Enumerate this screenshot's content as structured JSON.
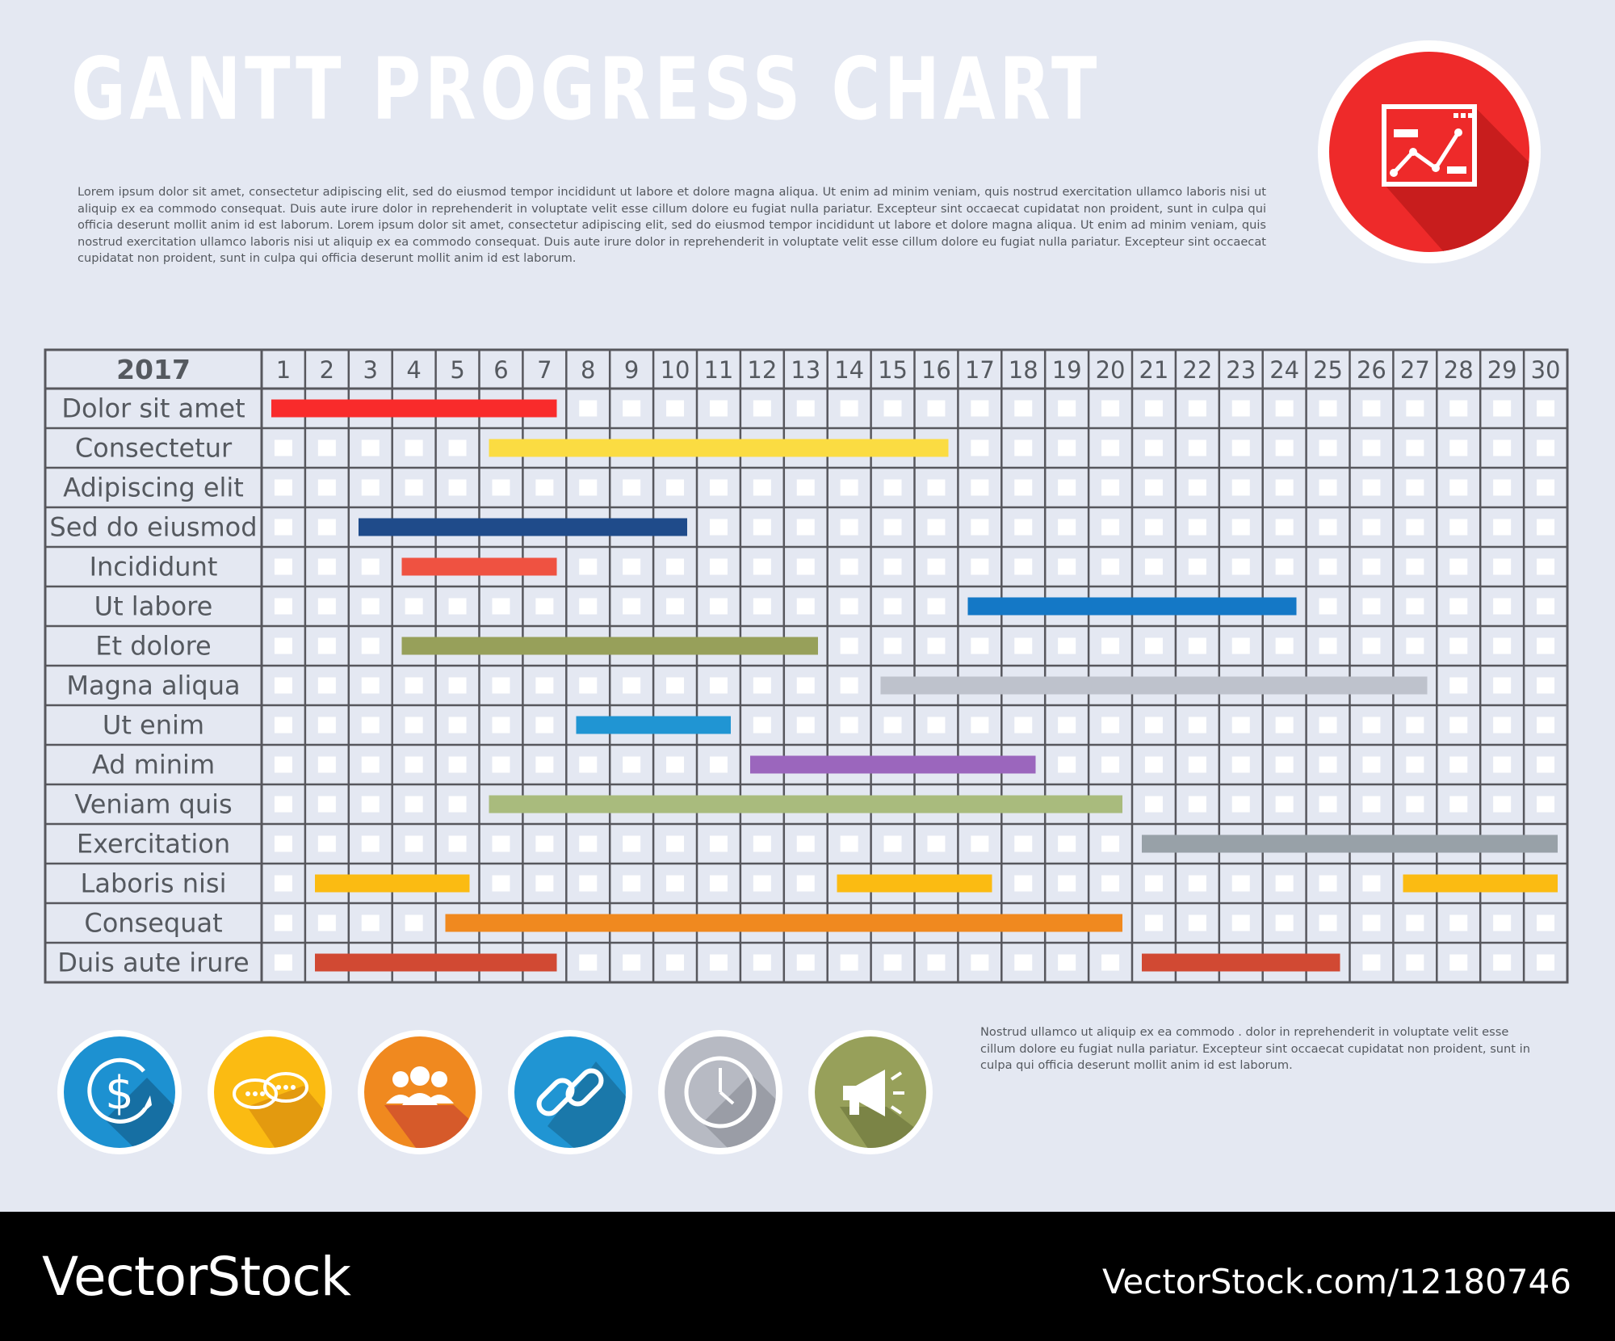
{
  "header": {
    "title": "GANTT PROGRESS CHART",
    "intro_text": "Lorem ipsum dolor sit amet, consectetur adipiscing elit, sed do eiusmod tempor incididunt ut labore et dolore magna aliqua. Ut enim ad minim veniam, quis nostrud exercitation ullamco laboris nisi ut aliquip ex ea commodo consequat. Duis aute irure dolor in reprehenderit in voluptate velit esse cillum dolore eu fugiat nulla pariatur. Excepteur sint occaecat cupidatat non proident, sunt in culpa qui officia deserunt mollit anim id est laborum. Lorem ipsum dolor sit amet, consectetur adipiscing elit, sed do eiusmod tempor incididunt ut labore et dolore magna aliqua. Ut enim ad minim veniam, quis nostrud exercitation ullamco laboris nisi ut aliquip ex ea commodo consequat. Duis aute irure dolor in reprehenderit in voluptate velit esse cillum dolore eu fugiat nulla pariatur. Excepteur sint occaecat cupidatat non proident, sunt in culpa qui officia deserunt mollit anim id est laborum.",
    "hero_icon": "line-chart-window-icon",
    "hero_color": "#ee2a2a"
  },
  "chart_data": {
    "type": "gantt",
    "year_label": "2017",
    "days": [
      1,
      2,
      3,
      4,
      5,
      6,
      7,
      8,
      9,
      10,
      11,
      12,
      13,
      14,
      15,
      16,
      17,
      18,
      19,
      20,
      21,
      22,
      23,
      24,
      25,
      26,
      27,
      28,
      29,
      30
    ],
    "tasks": [
      {
        "name": "Dolor sit amet",
        "color": "#f92b2b",
        "bars": [
          [
            1,
            7
          ]
        ]
      },
      {
        "name": "Consectetur",
        "color": "#fbdc42",
        "bars": [
          [
            6,
            16
          ]
        ]
      },
      {
        "name": "Adipiscing elit",
        "color": "",
        "bars": []
      },
      {
        "name": "Sed do eiusmod",
        "color": "#1f4b8a",
        "bars": [
          [
            3,
            10
          ]
        ]
      },
      {
        "name": "Incididunt",
        "color": "#ef5241",
        "bars": [
          [
            4,
            7
          ]
        ]
      },
      {
        "name": "Ut labore",
        "color": "#1478c6",
        "bars": [
          [
            17,
            24
          ]
        ]
      },
      {
        "name": "Et dolore",
        "color": "#97a05a",
        "bars": [
          [
            4,
            13
          ]
        ]
      },
      {
        "name": "Magna aliqua",
        "color": "#bec2cc",
        "bars": [
          [
            15,
            27
          ]
        ]
      },
      {
        "name": "Ut enim",
        "color": "#2095d3",
        "bars": [
          [
            8,
            11
          ]
        ]
      },
      {
        "name": "Ad minim",
        "color": "#9b66bd",
        "bars": [
          [
            12,
            18
          ]
        ]
      },
      {
        "name": "Veniam quis",
        "color": "#a9bb7d",
        "bars": [
          [
            6,
            20
          ]
        ]
      },
      {
        "name": "Exercitation",
        "color": "#98a1a8",
        "bars": [
          [
            21,
            30
          ]
        ]
      },
      {
        "name": "Laboris nisi",
        "color": "#fbbb12",
        "bars": [
          [
            2,
            5
          ],
          [
            14,
            17
          ],
          [
            27,
            30
          ]
        ]
      },
      {
        "name": "Consequat",
        "color": "#f0891f",
        "bars": [
          [
            5,
            20
          ]
        ]
      },
      {
        "name": "Duis aute irure",
        "color": "#d14933",
        "bars": [
          [
            2,
            7
          ],
          [
            21,
            25
          ]
        ]
      }
    ]
  },
  "icons": [
    {
      "name": "dollar-growth-icon",
      "color": "#1d91d1"
    },
    {
      "name": "speech-bubbles-icon",
      "color": "#fbbb12"
    },
    {
      "name": "team-people-icon",
      "color": "#f0891f"
    },
    {
      "name": "chain-link-icon",
      "color": "#2095d3"
    },
    {
      "name": "clock-icon",
      "color": "#b7bac3"
    },
    {
      "name": "megaphone-icon",
      "color": "#97a05a"
    }
  ],
  "footnote": "Nostrud  ullamco ut aliquip ex ea commodo .  dolor in reprehenderit in voluptate velit esse cillum dolore eu fugiat nulla pariatur. Excepteur sint occaecat cupidatat non proident, sunt in culpa qui officia deserunt mollit anim id est laborum.",
  "footer": {
    "brand": "VectorStock",
    "url": "VectorStock.com/12180746"
  }
}
